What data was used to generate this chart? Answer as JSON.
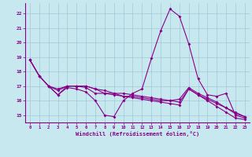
{
  "background_color": "#c8e8f0",
  "grid_color": "#a0c8d8",
  "line_color": "#880088",
  "xlim": [
    -0.5,
    23.5
  ],
  "ylim": [
    14.5,
    22.7
  ],
  "xlabel": "Windchill (Refroidissement éolien,°C)",
  "yticks": [
    15,
    16,
    17,
    18,
    19,
    20,
    21,
    22
  ],
  "xticks": [
    0,
    1,
    2,
    3,
    4,
    5,
    6,
    7,
    8,
    9,
    10,
    11,
    12,
    13,
    14,
    15,
    16,
    17,
    18,
    19,
    20,
    21,
    22,
    23
  ],
  "line1_x": [
    0,
    1,
    2,
    3,
    4,
    5,
    6,
    7,
    8,
    9,
    10,
    11,
    12,
    13,
    14,
    15,
    16,
    17,
    18,
    19,
    20,
    21,
    22,
    23
  ],
  "line1_y": [
    18.8,
    17.7,
    17.0,
    16.4,
    16.9,
    16.8,
    16.6,
    16.0,
    15.0,
    14.9,
    16.0,
    16.5,
    16.8,
    18.9,
    20.8,
    22.3,
    21.8,
    19.9,
    17.5,
    16.4,
    16.3,
    16.5,
    15.0,
    14.8
  ],
  "line2_x": [
    0,
    1,
    2,
    3,
    4,
    5,
    6,
    7,
    8,
    9,
    10,
    11,
    12,
    13,
    14,
    15,
    16,
    17,
    18,
    19,
    20,
    21,
    22,
    23
  ],
  "line2_y": [
    18.8,
    17.7,
    17.0,
    16.8,
    17.0,
    17.0,
    17.0,
    16.8,
    16.7,
    16.5,
    16.3,
    16.2,
    16.1,
    16.0,
    15.9,
    15.8,
    15.7,
    16.8,
    16.4,
    16.1,
    15.8,
    15.5,
    15.2,
    14.9
  ],
  "line3_x": [
    2,
    3,
    4,
    5,
    6,
    7,
    8,
    9,
    10,
    11,
    12,
    13,
    14,
    15,
    16,
    17,
    18,
    19,
    20,
    21,
    22,
    23
  ],
  "line3_y": [
    17.0,
    16.4,
    17.0,
    17.0,
    16.9,
    16.5,
    16.5,
    16.4,
    16.3,
    16.3,
    16.2,
    16.1,
    16.0,
    16.0,
    16.1,
    16.9,
    16.5,
    16.2,
    15.9,
    15.5,
    15.1,
    14.9
  ],
  "line4_x": [
    0,
    1,
    2,
    3,
    4,
    5,
    6,
    7,
    8,
    9,
    10,
    11,
    12,
    13,
    14,
    15,
    16,
    17,
    18,
    19,
    20,
    21,
    22,
    23
  ],
  "line4_y": [
    18.8,
    17.7,
    17.0,
    16.7,
    17.0,
    17.0,
    17.0,
    16.8,
    16.5,
    16.5,
    16.5,
    16.4,
    16.3,
    16.2,
    16.1,
    16.0,
    15.9,
    16.8,
    16.4,
    16.0,
    15.6,
    15.2,
    14.8,
    14.7
  ],
  "figsize": [
    3.2,
    2.0
  ],
  "dpi": 100
}
